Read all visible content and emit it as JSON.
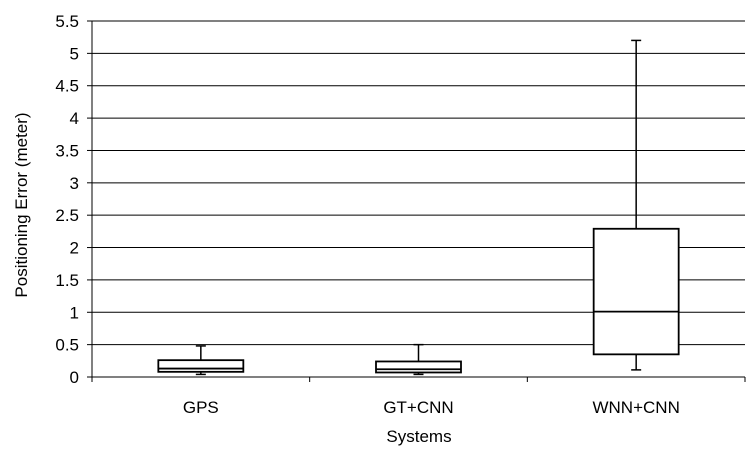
{
  "chart_data": {
    "type": "boxplot",
    "xlabel": "Systems",
    "ylabel": "Positioning Error (meter)",
    "ylim": [
      0,
      5.5
    ],
    "y_ticks": [
      "0",
      "0.5",
      "1",
      "1.5",
      "2",
      "2.5",
      "3",
      "3.5",
      "4",
      "4.5",
      "5",
      "5.5"
    ],
    "grid": true,
    "categories": [
      "GPS",
      "GT+CNN",
      "WNN+CNN"
    ],
    "boxes": [
      {
        "category": "GPS",
        "min": 0.04,
        "q1": 0.08,
        "median": 0.13,
        "q3": 0.26,
        "max": 0.48
      },
      {
        "category": "GT+CNN",
        "min": 0.04,
        "q1": 0.07,
        "median": 0.12,
        "q3": 0.24,
        "max": 0.5
      },
      {
        "category": "WNN+CNN",
        "min": 0.11,
        "q1": 0.35,
        "median": 1.01,
        "q3": 2.29,
        "max": 5.2
      }
    ]
  }
}
